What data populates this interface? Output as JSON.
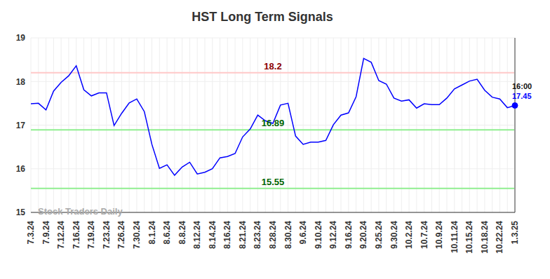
{
  "chart_data": {
    "type": "line",
    "title": "HST Long Term Signals",
    "watermark": "Stock Traders Daily",
    "last_time_label": "16:00",
    "categories": [
      "7.3.24",
      null,
      "7.9.24",
      null,
      "7.12.24",
      null,
      "7.16.24",
      null,
      "7.19.24",
      null,
      "7.23.24",
      null,
      "7.26.24",
      null,
      "7.30.24",
      null,
      "8.1.24",
      null,
      "8.6.24",
      null,
      "8.8.24",
      null,
      "8.12.24",
      null,
      "8.14.24",
      null,
      "8.16.24",
      null,
      "8.21.24",
      null,
      "8.23.24",
      null,
      "8.28.24",
      null,
      "8.30.24",
      null,
      "9.6.24",
      null,
      "9.10.24",
      null,
      "9.12.24",
      null,
      "9.16.24",
      null,
      "9.20.24",
      null,
      "9.25.24",
      null,
      "9.30.24",
      null,
      "10.2.24",
      null,
      "10.7.24",
      null,
      "10.9.24",
      null,
      "10.11.24",
      null,
      "10.15.24",
      null,
      "10.18.24",
      null,
      "10.22.24",
      null,
      "1.3.25"
    ],
    "values": [
      17.49,
      17.5,
      17.35,
      17.78,
      17.98,
      18.13,
      18.36,
      17.81,
      17.67,
      17.74,
      17.74,
      16.99,
      17.27,
      17.51,
      17.6,
      17.31,
      16.56,
      16.01,
      16.09,
      15.85,
      16.04,
      16.15,
      15.88,
      15.92,
      16.0,
      16.25,
      16.28,
      16.35,
      16.73,
      16.91,
      17.23,
      17.1,
      17.04,
      17.46,
      17.5,
      16.75,
      16.56,
      16.61,
      16.61,
      16.65,
      17.01,
      17.23,
      17.28,
      17.65,
      18.53,
      18.44,
      18.02,
      17.94,
      17.62,
      17.55,
      17.58,
      17.39,
      17.49,
      17.47,
      17.47,
      17.62,
      17.83,
      17.92,
      18.01,
      18.05,
      17.8,
      17.64,
      17.6,
      17.4,
      17.45
    ],
    "color": "#0000ff",
    "ylim": [
      15,
      19
    ],
    "yticks": [
      15,
      16,
      17,
      18,
      19
    ],
    "grid": true,
    "reference_lines": [
      {
        "value": 18.2,
        "type": "resistance",
        "color": "#ffc8c8"
      },
      {
        "value": 16.89,
        "type": "support",
        "color": "#90ee90"
      },
      {
        "value": 15.55,
        "type": "support",
        "color": "#90ee90"
      }
    ]
  }
}
